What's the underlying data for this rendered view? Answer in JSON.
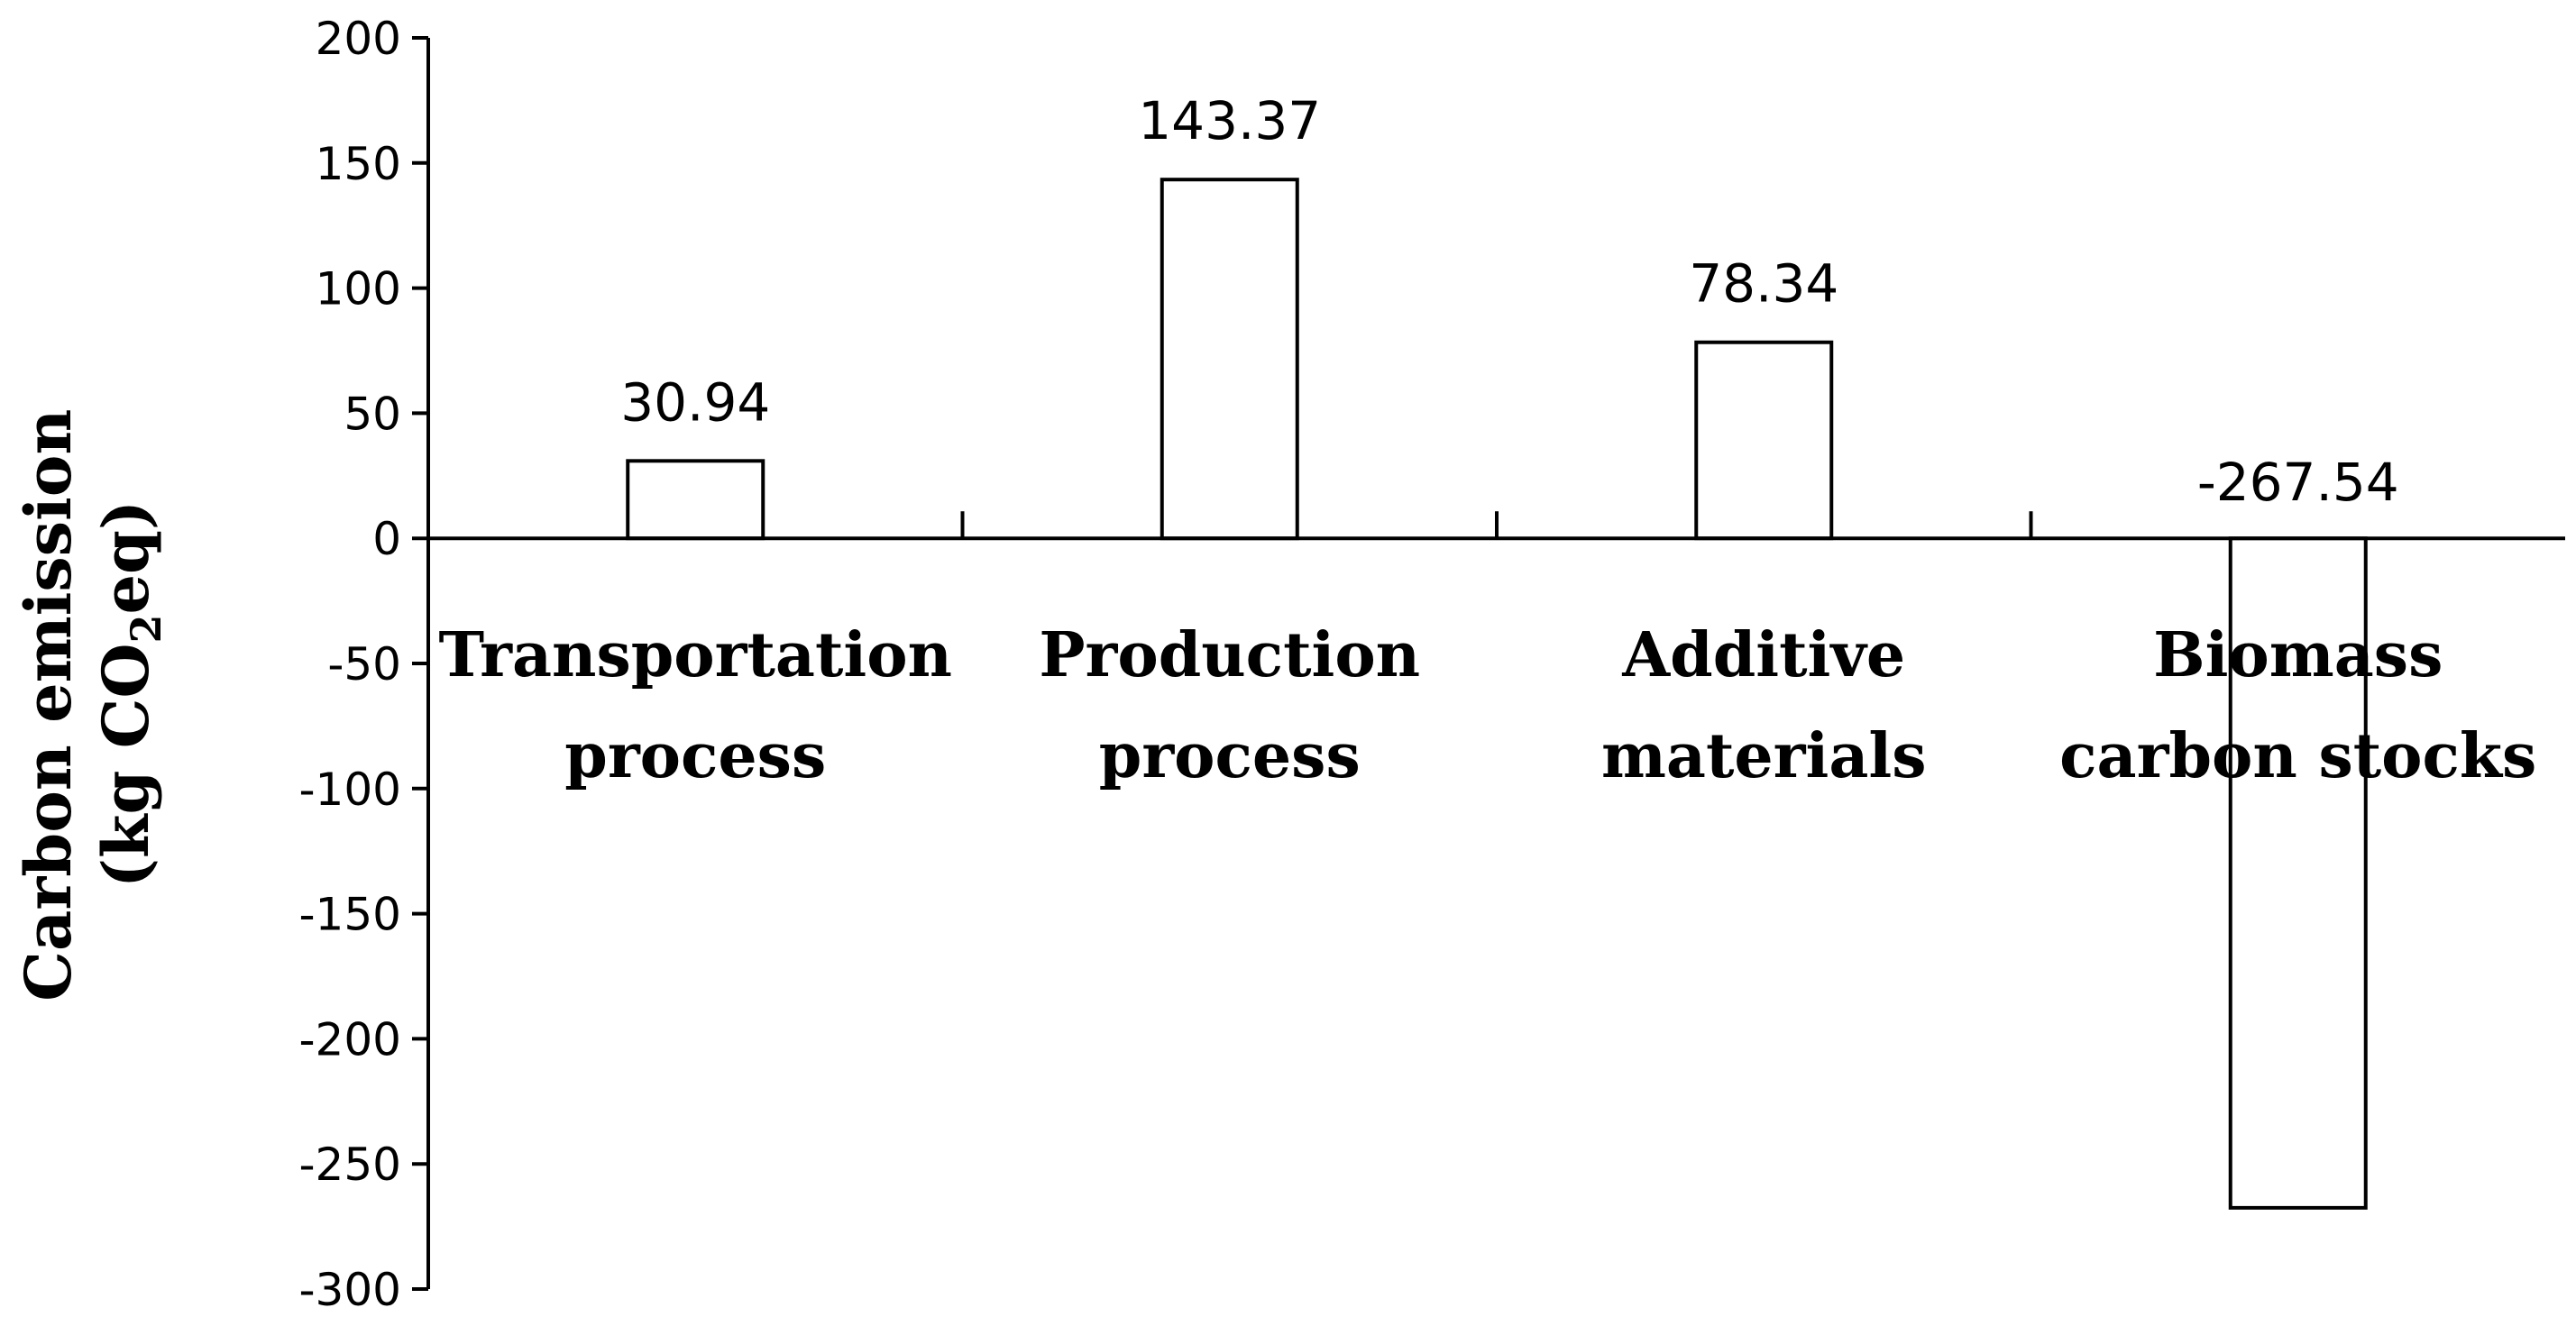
{
  "chart_data": {
    "type": "bar",
    "categories": [
      [
        "Transportation",
        "process"
      ],
      [
        "Production",
        "process"
      ],
      [
        "Additive",
        "materials"
      ],
      [
        "Biomass",
        "carbon stocks"
      ]
    ],
    "values": [
      30.94,
      143.37,
      78.34,
      -267.54
    ],
    "data_labels": [
      "30.94",
      "143.37",
      "78.34",
      "-267.54"
    ],
    "ylabel": {
      "line1": "Carbon emission",
      "line2_pre": "(kg CO",
      "line2_sub": "2",
      "line2_post": "eq)"
    },
    "ylim": [
      -300,
      200
    ],
    "yticks": [
      200,
      150,
      100,
      50,
      0,
      -50,
      -100,
      -150,
      -200,
      -250,
      -300
    ],
    "grid": false,
    "legend": false,
    "bar_fill": "#ffffff",
    "bar_stroke": "#000000"
  }
}
